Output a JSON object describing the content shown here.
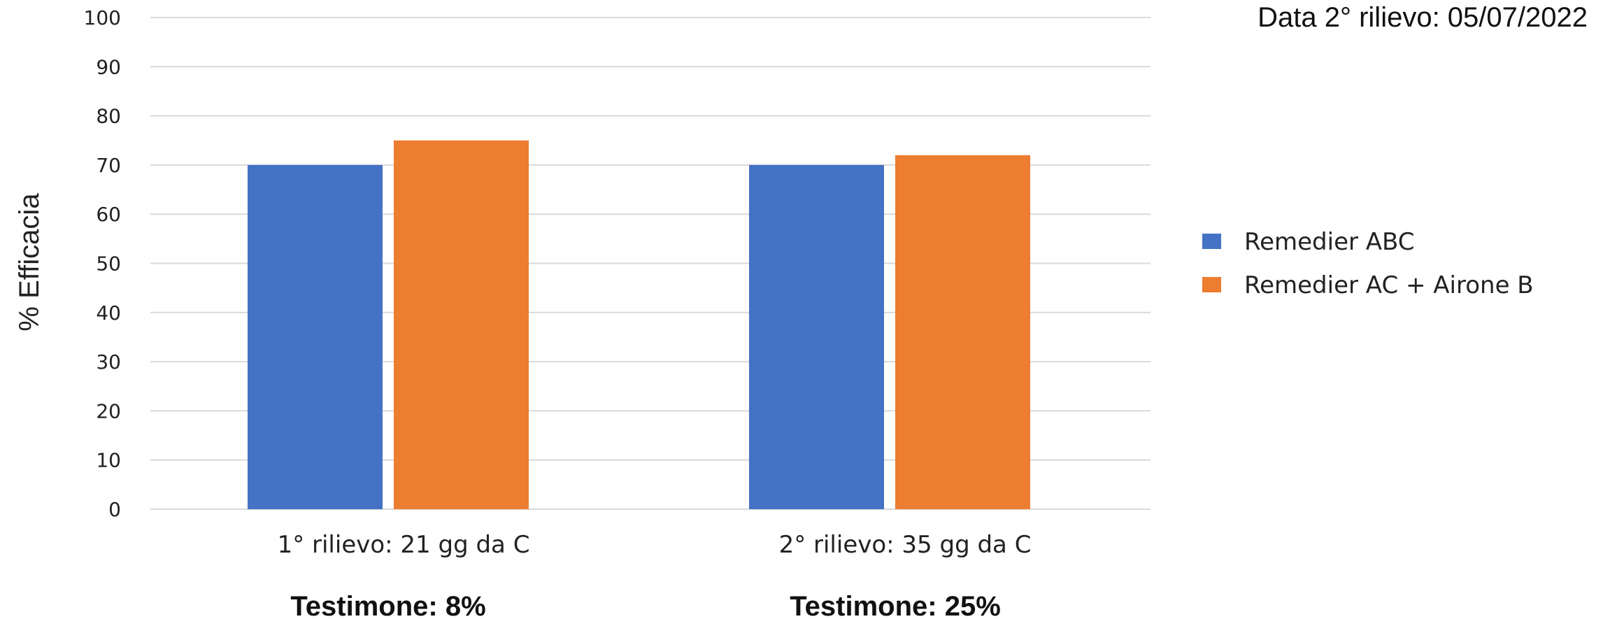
{
  "date_note": "Data 2° rilievo: 05/07/2022",
  "footnotes": [
    "Testimone: 8%",
    "Testimone: 25%"
  ],
  "colors": {
    "series_1": "#4472c4",
    "series_2": "#ed7d31",
    "grid": "#d9d9d9"
  },
  "chart_data": {
    "type": "bar",
    "categories": [
      "1° rilievo: 21 gg da C",
      "2° rilievo: 35 gg da C"
    ],
    "series": [
      {
        "name": "Remedier ABC",
        "values": [
          70,
          70
        ]
      },
      {
        "name": "Remedier AC + Airone B",
        "values": [
          75,
          72
        ]
      }
    ],
    "ylabel": "% Efficacia",
    "xlabel": "",
    "ylim": [
      0,
      100
    ],
    "yticks": [
      0,
      10,
      20,
      30,
      40,
      50,
      60,
      70,
      80,
      90,
      100
    ],
    "grid": true,
    "legend_position": "right"
  }
}
